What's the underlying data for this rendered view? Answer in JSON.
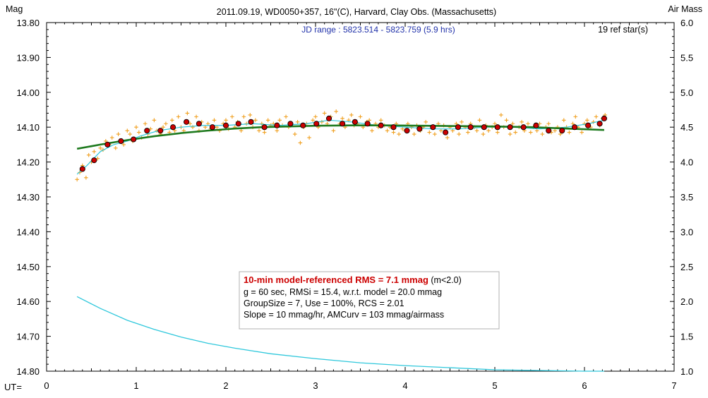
{
  "chart_data": {
    "type": "scatter",
    "title": "2011.09.19, WD0050+357, 16\"(C), Harvard, Clay Obs. (Massachusetts)",
    "subtitle": "JD range : 5823.514 - 5823.759 (5.9 hrs)",
    "ref_stars": "19 ref star(s)",
    "ylabel": "Mag",
    "y2label": "Air Mass",
    "xlabel": "UT=",
    "xlim": [
      0,
      7
    ],
    "ylim": [
      14.8,
      13.8
    ],
    "y2lim": [
      1.0,
      6.0
    ],
    "x_ticks": [
      "0",
      "1",
      "2",
      "3",
      "4",
      "5",
      "6",
      "7"
    ],
    "y_ticks": [
      "13.80",
      "13.90",
      "14.00",
      "14.10",
      "14.20",
      "14.30",
      "14.40",
      "14.50",
      "14.60",
      "14.70",
      "14.80"
    ],
    "y2_ticks": [
      "6.0",
      "5.5",
      "5.0",
      "4.5",
      "4.0",
      "3.5",
      "3.0",
      "2.5",
      "2.0",
      "1.5",
      "1.0"
    ],
    "grid": false,
    "colors": {
      "raw": "#f0a020",
      "binned": "#cc0000",
      "smooth": "#30c8dc",
      "model": "#1e7a1e",
      "airmass": "#30c8dc"
    },
    "series": [
      {
        "role": "binned",
        "x": [
          0.4,
          0.53,
          0.68,
          0.83,
          0.97,
          1.12,
          1.27,
          1.41,
          1.56,
          1.7,
          1.85,
          2.0,
          2.14,
          2.28,
          2.43,
          2.57,
          2.72,
          2.86,
          3.01,
          3.15,
          3.3,
          3.44,
          3.58,
          3.73,
          3.87,
          4.02,
          4.16,
          4.31,
          4.45,
          4.59,
          4.73,
          4.88,
          5.03,
          5.17,
          5.32,
          5.46,
          5.6,
          5.75,
          5.89,
          6.04,
          6.17,
          6.22
        ],
        "y": [
          14.22,
          14.195,
          14.15,
          14.14,
          14.135,
          14.11,
          14.11,
          14.1,
          14.085,
          14.09,
          14.1,
          14.095,
          14.09,
          14.085,
          14.1,
          14.095,
          14.09,
          14.095,
          14.09,
          14.075,
          14.09,
          14.085,
          14.09,
          14.095,
          14.1,
          14.11,
          14.105,
          14.1,
          14.115,
          14.1,
          14.1,
          14.1,
          14.1,
          14.1,
          14.1,
          14.095,
          14.11,
          14.11,
          14.1,
          14.095,
          14.09,
          14.075
        ]
      },
      {
        "role": "model",
        "x": [
          0.34,
          0.6,
          0.9,
          1.2,
          1.5,
          1.8,
          2.1,
          2.4,
          2.7,
          3.0,
          3.4,
          3.8,
          4.2,
          4.6,
          5.0,
          5.4,
          5.8,
          6.22
        ],
        "y": [
          14.162,
          14.15,
          14.137,
          14.126,
          14.117,
          14.11,
          14.104,
          14.1,
          14.098,
          14.096,
          14.095,
          14.095,
          14.096,
          14.097,
          14.098,
          14.1,
          14.104,
          14.108
        ]
      },
      {
        "role": "smooth",
        "x": [
          0.34,
          0.45,
          0.6,
          0.75,
          0.9,
          1.05,
          1.25,
          1.5,
          1.75,
          2.0,
          2.3,
          2.6,
          2.9,
          3.15,
          3.4,
          3.7,
          4.0,
          4.3,
          4.6,
          4.9,
          5.2,
          5.5,
          5.8,
          6.05,
          6.22
        ],
        "y": [
          14.235,
          14.21,
          14.17,
          14.15,
          14.14,
          14.125,
          14.11,
          14.1,
          14.095,
          14.095,
          14.09,
          14.095,
          14.09,
          14.08,
          14.085,
          14.095,
          14.1,
          14.105,
          14.105,
          14.1,
          14.1,
          14.105,
          14.1,
          14.09,
          14.08
        ]
      },
      {
        "role": "airmass",
        "x": [
          0.34,
          0.6,
          0.9,
          1.2,
          1.5,
          1.8,
          2.1,
          2.5,
          3.0,
          3.5,
          4.0,
          4.5,
          5.0,
          5.5,
          6.0,
          6.22
        ],
        "y": [
          2.07,
          1.9,
          1.73,
          1.6,
          1.49,
          1.4,
          1.33,
          1.25,
          1.18,
          1.12,
          1.08,
          1.05,
          1.02,
          1.01,
          1.0,
          1.0
        ]
      }
    ],
    "scatter_raw": {
      "x": [
        0.34,
        0.37,
        0.4,
        0.44,
        0.47,
        0.5,
        0.53,
        0.57,
        0.6,
        0.63,
        0.66,
        0.7,
        0.73,
        0.77,
        0.8,
        0.83,
        0.86,
        0.9,
        0.93,
        0.96,
        1.0,
        1.03,
        1.06,
        1.1,
        1.13,
        1.16,
        1.2,
        1.23,
        1.27,
        1.3,
        1.33,
        1.37,
        1.4,
        1.43,
        1.47,
        1.5,
        1.53,
        1.57,
        1.6,
        1.63,
        1.67,
        1.7,
        1.73,
        1.77,
        1.8,
        1.83,
        1.87,
        1.9,
        1.93,
        1.97,
        2.0,
        2.03,
        2.07,
        2.1,
        2.13,
        2.17,
        2.2,
        2.23,
        2.27,
        2.3,
        2.33,
        2.37,
        2.4,
        2.43,
        2.47,
        2.5,
        2.53,
        2.57,
        2.6,
        2.63,
        2.67,
        2.7,
        2.73,
        2.77,
        2.8,
        2.83,
        2.87,
        2.9,
        2.93,
        2.97,
        3.0,
        3.03,
        3.07,
        3.1,
        3.13,
        3.17,
        3.2,
        3.23,
        3.27,
        3.3,
        3.33,
        3.37,
        3.4,
        3.43,
        3.47,
        3.5,
        3.53,
        3.57,
        3.6,
        3.63,
        3.67,
        3.7,
        3.73,
        3.77,
        3.8,
        3.83,
        3.87,
        3.9,
        3.93,
        3.97,
        4.0,
        4.03,
        4.07,
        4.1,
        4.13,
        4.17,
        4.2,
        4.23,
        4.27,
        4.3,
        4.33,
        4.37,
        4.4,
        4.43,
        4.47,
        4.5,
        4.53,
        4.57,
        4.6,
        4.63,
        4.67,
        4.7,
        4.73,
        4.77,
        4.8,
        4.83,
        4.87,
        4.9,
        4.93,
        4.97,
        5.0,
        5.03,
        5.07,
        5.1,
        5.13,
        5.17,
        5.2,
        5.23,
        5.27,
        5.3,
        5.33,
        5.37,
        5.4,
        5.43,
        5.47,
        5.5,
        5.53,
        5.57,
        5.6,
        5.63,
        5.67,
        5.7,
        5.73,
        5.77,
        5.8,
        5.83,
        5.87,
        5.9,
        5.93,
        5.97,
        6.0,
        6.03,
        6.07,
        6.1,
        6.13,
        6.17,
        6.2,
        6.23
      ],
      "y": [
        14.25,
        14.23,
        14.21,
        14.245,
        14.18,
        14.2,
        14.17,
        14.19,
        14.16,
        14.165,
        14.14,
        14.15,
        14.13,
        14.16,
        14.12,
        14.14,
        14.15,
        14.11,
        14.12,
        14.14,
        14.1,
        14.115,
        14.13,
        14.09,
        14.12,
        14.105,
        14.08,
        14.11,
        14.12,
        14.1,
        14.09,
        14.115,
        14.08,
        14.11,
        14.07,
        14.1,
        14.11,
        14.06,
        14.09,
        14.1,
        14.07,
        14.11,
        14.085,
        14.1,
        14.09,
        14.105,
        14.08,
        14.1,
        14.11,
        14.09,
        14.08,
        14.105,
        14.07,
        14.1,
        14.085,
        14.11,
        14.07,
        14.09,
        14.065,
        14.1,
        14.08,
        14.11,
        14.09,
        14.115,
        14.08,
        14.095,
        14.09,
        14.11,
        14.08,
        14.095,
        14.07,
        14.1,
        14.09,
        14.12,
        14.085,
        14.145,
        14.1,
        14.09,
        14.13,
        14.08,
        14.07,
        14.1,
        14.085,
        14.06,
        14.09,
        14.07,
        14.11,
        14.055,
        14.09,
        14.075,
        14.1,
        14.08,
        14.065,
        14.095,
        14.09,
        14.07,
        14.1,
        14.085,
        14.08,
        14.11,
        14.09,
        14.1,
        14.08,
        14.095,
        14.11,
        14.1,
        14.115,
        14.09,
        14.12,
        14.105,
        14.11,
        14.09,
        14.1,
        14.12,
        14.095,
        14.11,
        14.1,
        14.085,
        14.115,
        14.1,
        14.12,
        14.09,
        14.11,
        14.095,
        14.13,
        14.1,
        14.11,
        14.09,
        14.12,
        14.085,
        14.1,
        14.115,
        14.09,
        14.1,
        14.11,
        14.08,
        14.12,
        14.095,
        14.11,
        14.1,
        14.09,
        14.115,
        14.065,
        14.1,
        14.08,
        14.12,
        14.09,
        14.115,
        14.1,
        14.085,
        14.11,
        14.09,
        14.115,
        14.1,
        14.11,
        14.09,
        14.12,
        14.1,
        14.09,
        14.115,
        14.11,
        14.1,
        14.12,
        14.08,
        14.1,
        14.115,
        14.09,
        14.07,
        14.1,
        14.115,
        14.09,
        14.08,
        14.1,
        14.085,
        14.07,
        14.095,
        14.075,
        14.065
      ]
    },
    "annotation": {
      "highlight": "10-min model-referenced RMS = 7.1 mmag",
      "highlight_suffix": " (m<2.0)",
      "lines": [
        "g = 60 sec, RMSi = 15.4, w.r.t. model = 20.0 mmag",
        "GroupSize = 7, Use = 100%, RCS = 2.01",
        "Slope = 10 mmag/hr, AMCurv = 103 mmag/airmass"
      ]
    }
  }
}
